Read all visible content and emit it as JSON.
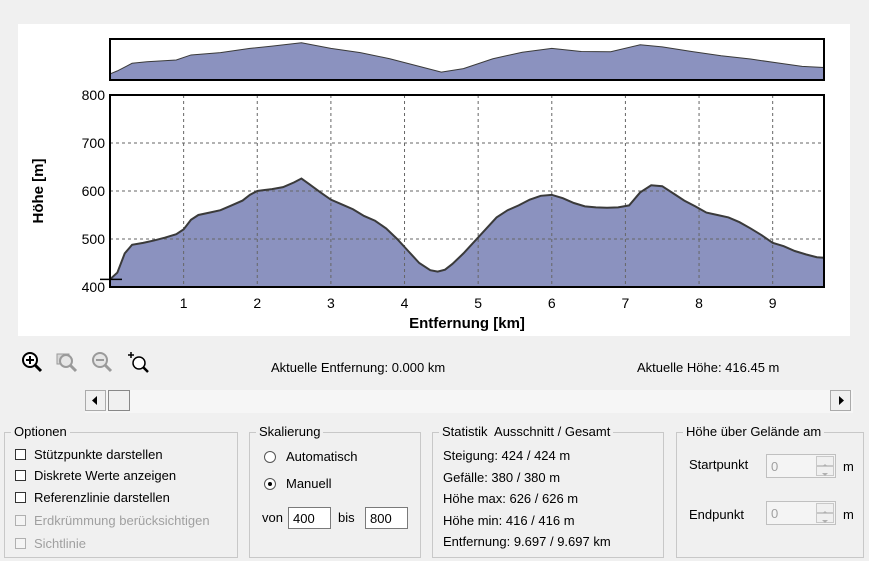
{
  "chart_data": [
    {
      "type": "area",
      "role": "overview",
      "x": [
        0,
        0.1,
        0.3,
        0.5,
        0.9,
        1.1,
        1.5,
        1.9,
        2.2,
        2.6,
        3.0,
        3.4,
        3.8,
        4.2,
        4.5,
        4.8,
        5.2,
        5.6,
        6.0,
        6.4,
        6.8,
        7.2,
        7.5,
        7.9,
        8.3,
        8.7,
        9.1,
        9.4,
        9.697
      ],
      "y": [
        420,
        440,
        490,
        500,
        512,
        545,
        560,
        588,
        603,
        625,
        588,
        560,
        520,
        470,
        432,
        455,
        520,
        563,
        588,
        568,
        566,
        612,
        598,
        568,
        540,
        518,
        490,
        470,
        462
      ]
    },
    {
      "type": "area",
      "role": "main",
      "xlabel": "Entfernung [km]",
      "ylabel": "Höhe [m]",
      "xlim": [
        0,
        9.697
      ],
      "ylim": [
        400,
        800
      ],
      "x_ticks": [
        "1",
        "2",
        "3",
        "4",
        "5",
        "6",
        "7",
        "8",
        "9"
      ],
      "y_ticks": [
        "400",
        "500",
        "600",
        "700",
        "800"
      ],
      "grid": true,
      "x": [
        0,
        0.1,
        0.2,
        0.3,
        0.45,
        0.6,
        0.75,
        0.9,
        1.0,
        1.1,
        1.2,
        1.35,
        1.5,
        1.65,
        1.8,
        1.9,
        2.0,
        2.1,
        2.2,
        2.35,
        2.5,
        2.6,
        2.7,
        2.85,
        3.0,
        3.15,
        3.3,
        3.45,
        3.6,
        3.75,
        3.9,
        4.05,
        4.2,
        4.35,
        4.45,
        4.55,
        4.65,
        4.8,
        4.95,
        5.1,
        5.25,
        5.4,
        5.55,
        5.7,
        5.85,
        6.0,
        6.15,
        6.3,
        6.45,
        6.6,
        6.75,
        6.9,
        7.05,
        7.2,
        7.35,
        7.5,
        7.65,
        7.8,
        7.95,
        8.1,
        8.25,
        8.4,
        8.55,
        8.7,
        8.85,
        9.0,
        9.15,
        9.3,
        9.45,
        9.6,
        9.697
      ],
      "y": [
        416,
        430,
        470,
        488,
        492,
        497,
        503,
        510,
        520,
        540,
        550,
        555,
        560,
        570,
        580,
        592,
        600,
        602,
        604,
        608,
        618,
        626,
        615,
        598,
        582,
        572,
        562,
        548,
        538,
        522,
        500,
        475,
        450,
        435,
        432,
        436,
        448,
        470,
        495,
        520,
        545,
        560,
        570,
        582,
        590,
        592,
        585,
        575,
        568,
        566,
        565,
        566,
        570,
        597,
        612,
        610,
        595,
        580,
        568,
        555,
        550,
        545,
        535,
        522,
        508,
        492,
        485,
        475,
        468,
        462,
        461
      ]
    }
  ],
  "toolbar": {
    "icons": [
      "zoom-in-icon",
      "zoom-region-icon",
      "zoom-out-icon",
      "zoom-reset-icon"
    ]
  },
  "status": {
    "distance": "Aktuelle Entfernung: 0.000 km",
    "height": "Aktuelle Höhe: 416.45 m"
  },
  "optionen": {
    "title": "Optionen",
    "items": [
      {
        "label": "Stützpunkte darstellen",
        "checked": false,
        "enabled": true
      },
      {
        "label": "Diskrete Werte anzeigen",
        "checked": false,
        "enabled": true
      },
      {
        "label": "Referenzlinie darstellen",
        "checked": false,
        "enabled": true
      },
      {
        "label": "Erdkrümmung berücksichtigen",
        "checked": false,
        "enabled": false
      },
      {
        "label": "Sichtlinie",
        "checked": false,
        "enabled": false
      }
    ]
  },
  "skalierung": {
    "title": "Skalierung",
    "auto_label": "Automatisch",
    "manual_label": "Manuell",
    "from_label": "von",
    "from_value": "400",
    "to_label": "bis",
    "to_value": "800"
  },
  "statistik": {
    "title": "Statistik  Ausschnitt / Gesamt",
    "lines": [
      "Steigung: 424 / 424 m",
      "Gefälle: 380 / 380 m",
      "Höhe max: 626 / 626 m",
      "Höhe min: 416 / 416 m",
      "Entfernung: 9.697 / 9.697 km"
    ]
  },
  "gelaende": {
    "title": "Höhe über Gelände am",
    "start_label": "Startpunkt",
    "start_value": "0",
    "end_label": "Endpunkt",
    "end_value": "0",
    "unit": "m"
  },
  "colors": {
    "fill": "#8b92bf",
    "line": "#3a3a3a"
  }
}
